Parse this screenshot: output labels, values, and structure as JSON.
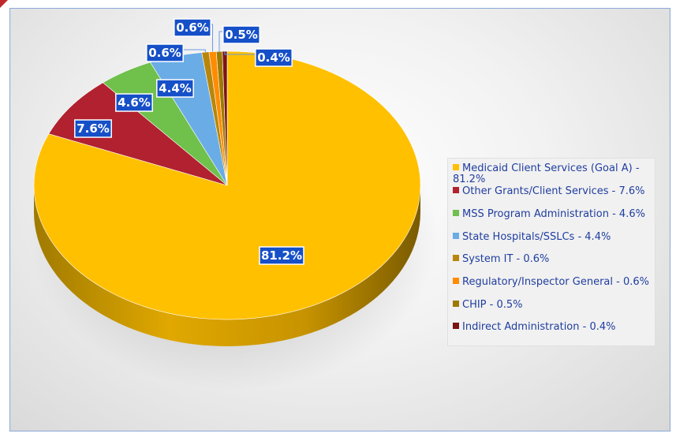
{
  "chart_data": {
    "type": "pie",
    "style": "3d",
    "title": "",
    "slices": [
      {
        "label": "Medicaid Client Services (Goal A)",
        "value": 81.2,
        "data_label": "81.2%",
        "legend": "Medicaid Client Services (Goal A) - 81.2%",
        "color": "#ffc000"
      },
      {
        "label": "Other Grants/Client Services",
        "value": 7.6,
        "data_label": "7.6%",
        "legend": "Other Grants/Client Services - 7.6%",
        "color": "#b1212f"
      },
      {
        "label": "MSS Program Administration",
        "value": 4.6,
        "data_label": "4.6%",
        "legend": "MSS Program Administration - 4.6%",
        "color": "#70c04c"
      },
      {
        "label": "State Hospitals/SSLCs",
        "value": 4.4,
        "data_label": "4.4%",
        "legend": "State Hospitals/SSLCs - 4.4%",
        "color": "#6aace6"
      },
      {
        "label": "System IT",
        "value": 0.6,
        "data_label": "0.6%",
        "legend": "System IT - 0.6%",
        "color": "#b8860b"
      },
      {
        "label": "Regulatory/Inspector General",
        "value": 0.6,
        "data_label": "0.6%",
        "legend": "Regulatory/Inspector General - 0.6%",
        "color": "#ff8c00"
      },
      {
        "label": "CHIP",
        "value": 0.5,
        "data_label": "0.5%",
        "legend": "CHIP - 0.5%",
        "color": "#9c7a00"
      },
      {
        "label": "Indirect Administration",
        "value": 0.4,
        "data_label": "0.4%",
        "legend": "Indirect Administration - 0.4%",
        "color": "#7b1416"
      }
    ],
    "legend_position": "right"
  },
  "colors": {
    "label_bg": "#1650c8",
    "label_text": "#ffffff",
    "legend_text": "#1f3da0"
  }
}
